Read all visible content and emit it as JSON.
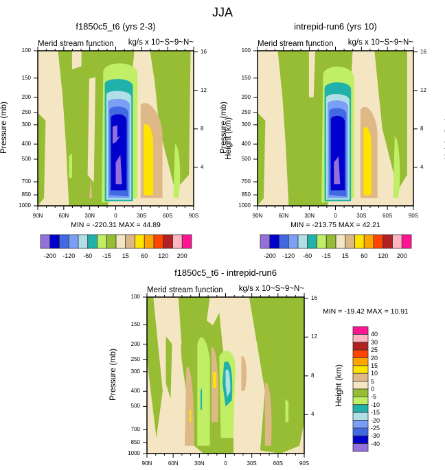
{
  "title": "JJA",
  "chart_data": [
    {
      "type": "heatmap",
      "id": "panel-control",
      "title": "f1850c5_t6 (yrs 2-3)",
      "left_string": "Merid stream function",
      "right_string": "kg/s x 10~S~9~N~",
      "xlabel": "",
      "ylabel": "Pressure (mb)",
      "ylabel_right": "Height (km)",
      "x_ticks": [
        "90N",
        "60N",
        "30N",
        "0",
        "30S",
        "60S",
        "90S"
      ],
      "y_ticks": [
        "100",
        "150",
        "200",
        "250",
        "300",
        "400",
        "500",
        "700",
        "850",
        "1000"
      ],
      "y_ticks_right": [
        "16",
        "12",
        "8",
        "4"
      ],
      "min": -220.31,
      "max": 44.89,
      "min_text": "MIN = -220.31   MAX =  44.89",
      "xlim": [
        "90N",
        "90S"
      ],
      "ylim": [
        1000,
        100
      ],
      "colorbar": {
        "orientation": "horizontal",
        "levels": [
          -200,
          -160,
          -120,
          -80,
          -60,
          -40,
          -15,
          0,
          15,
          40,
          60,
          80,
          120,
          160,
          200
        ],
        "labels": [
          "-200",
          "-120",
          "-60",
          "-15",
          "15",
          "60",
          "120",
          "200"
        ],
        "colors": [
          "#9370db",
          "#0000cd",
          "#4169e1",
          "#7b9ff4",
          "#b0e0e6",
          "#20b2aa",
          "#c0ef65",
          "#96bd34",
          "#f5e6c3",
          "#deb887",
          "#ffe400",
          "#ffa500",
          "#ff4500",
          "#b22222",
          "#ffb6c1",
          "#ff1493"
        ]
      }
    },
    {
      "type": "heatmap",
      "id": "panel-test",
      "title": "intrepid-run6 (yrs 10)",
      "left_string": "Merid stream function",
      "right_string": "kg/s x 10~S~9~N~",
      "xlabel": "",
      "ylabel": "Pressure (mb)",
      "ylabel_right": "Height (km)",
      "x_ticks": [
        "90N",
        "60N",
        "30N",
        "0",
        "30S",
        "60S",
        "90S"
      ],
      "y_ticks": [
        "100",
        "150",
        "200",
        "250",
        "300",
        "400",
        "500",
        "700",
        "850",
        "1000"
      ],
      "y_ticks_right": [
        "16",
        "12",
        "8",
        "4"
      ],
      "min": -213.75,
      "max": 42.21,
      "min_text": "MIN = -213.75   MAX =  42.21",
      "xlim": [
        "90N",
        "90S"
      ],
      "ylim": [
        1000,
        100
      ],
      "colorbar": {
        "orientation": "horizontal",
        "levels": [
          -200,
          -160,
          -120,
          -80,
          -60,
          -40,
          -15,
          0,
          15,
          40,
          60,
          80,
          120,
          160,
          200
        ],
        "labels": [
          "-200",
          "-120",
          "-60",
          "-15",
          "15",
          "60",
          "120",
          "200"
        ],
        "colors": [
          "#9370db",
          "#0000cd",
          "#4169e1",
          "#7b9ff4",
          "#b0e0e6",
          "#20b2aa",
          "#c0ef65",
          "#96bd34",
          "#f5e6c3",
          "#deb887",
          "#ffe400",
          "#ffa500",
          "#ff4500",
          "#b22222",
          "#ffb6c1",
          "#ff1493"
        ]
      }
    },
    {
      "type": "heatmap",
      "id": "panel-diff",
      "title": "f1850c5_t6 - intrepid-run6",
      "left_string": "Merid stream function",
      "right_string": "kg/s x 10~S~9~N~",
      "xlabel": "",
      "ylabel": "Pressure (mb)",
      "ylabel_right": "Height (km)",
      "x_ticks": [
        "90N",
        "60N",
        "30N",
        "0",
        "30S",
        "60S",
        "90S"
      ],
      "y_ticks": [
        "100",
        "150",
        "200",
        "250",
        "300",
        "400",
        "500",
        "700",
        "850",
        "1000"
      ],
      "y_ticks_right": [
        "16",
        "12",
        "8",
        "4"
      ],
      "min": -19.42,
      "max": 10.91,
      "min_text": "MIN = -19.42  MAX =  10.91",
      "xlim": [
        "90N",
        "90S"
      ],
      "ylim": [
        1000,
        100
      ],
      "colorbar": {
        "orientation": "vertical",
        "labels": [
          "40",
          "30",
          "25",
          "20",
          "15",
          "10",
          "5",
          "0",
          "-5",
          "-10",
          "-15",
          "-20",
          "-25",
          "-30",
          "-40"
        ],
        "colors": [
          "#ff1493",
          "#ffb6c1",
          "#b22222",
          "#ff4500",
          "#ffa500",
          "#ffe400",
          "#deb887",
          "#f5e6c3",
          "#96bd34",
          "#c0ef65",
          "#20b2aa",
          "#b0e0e6",
          "#7b9ff4",
          "#4169e1",
          "#0000cd",
          "#9370db"
        ]
      }
    }
  ]
}
